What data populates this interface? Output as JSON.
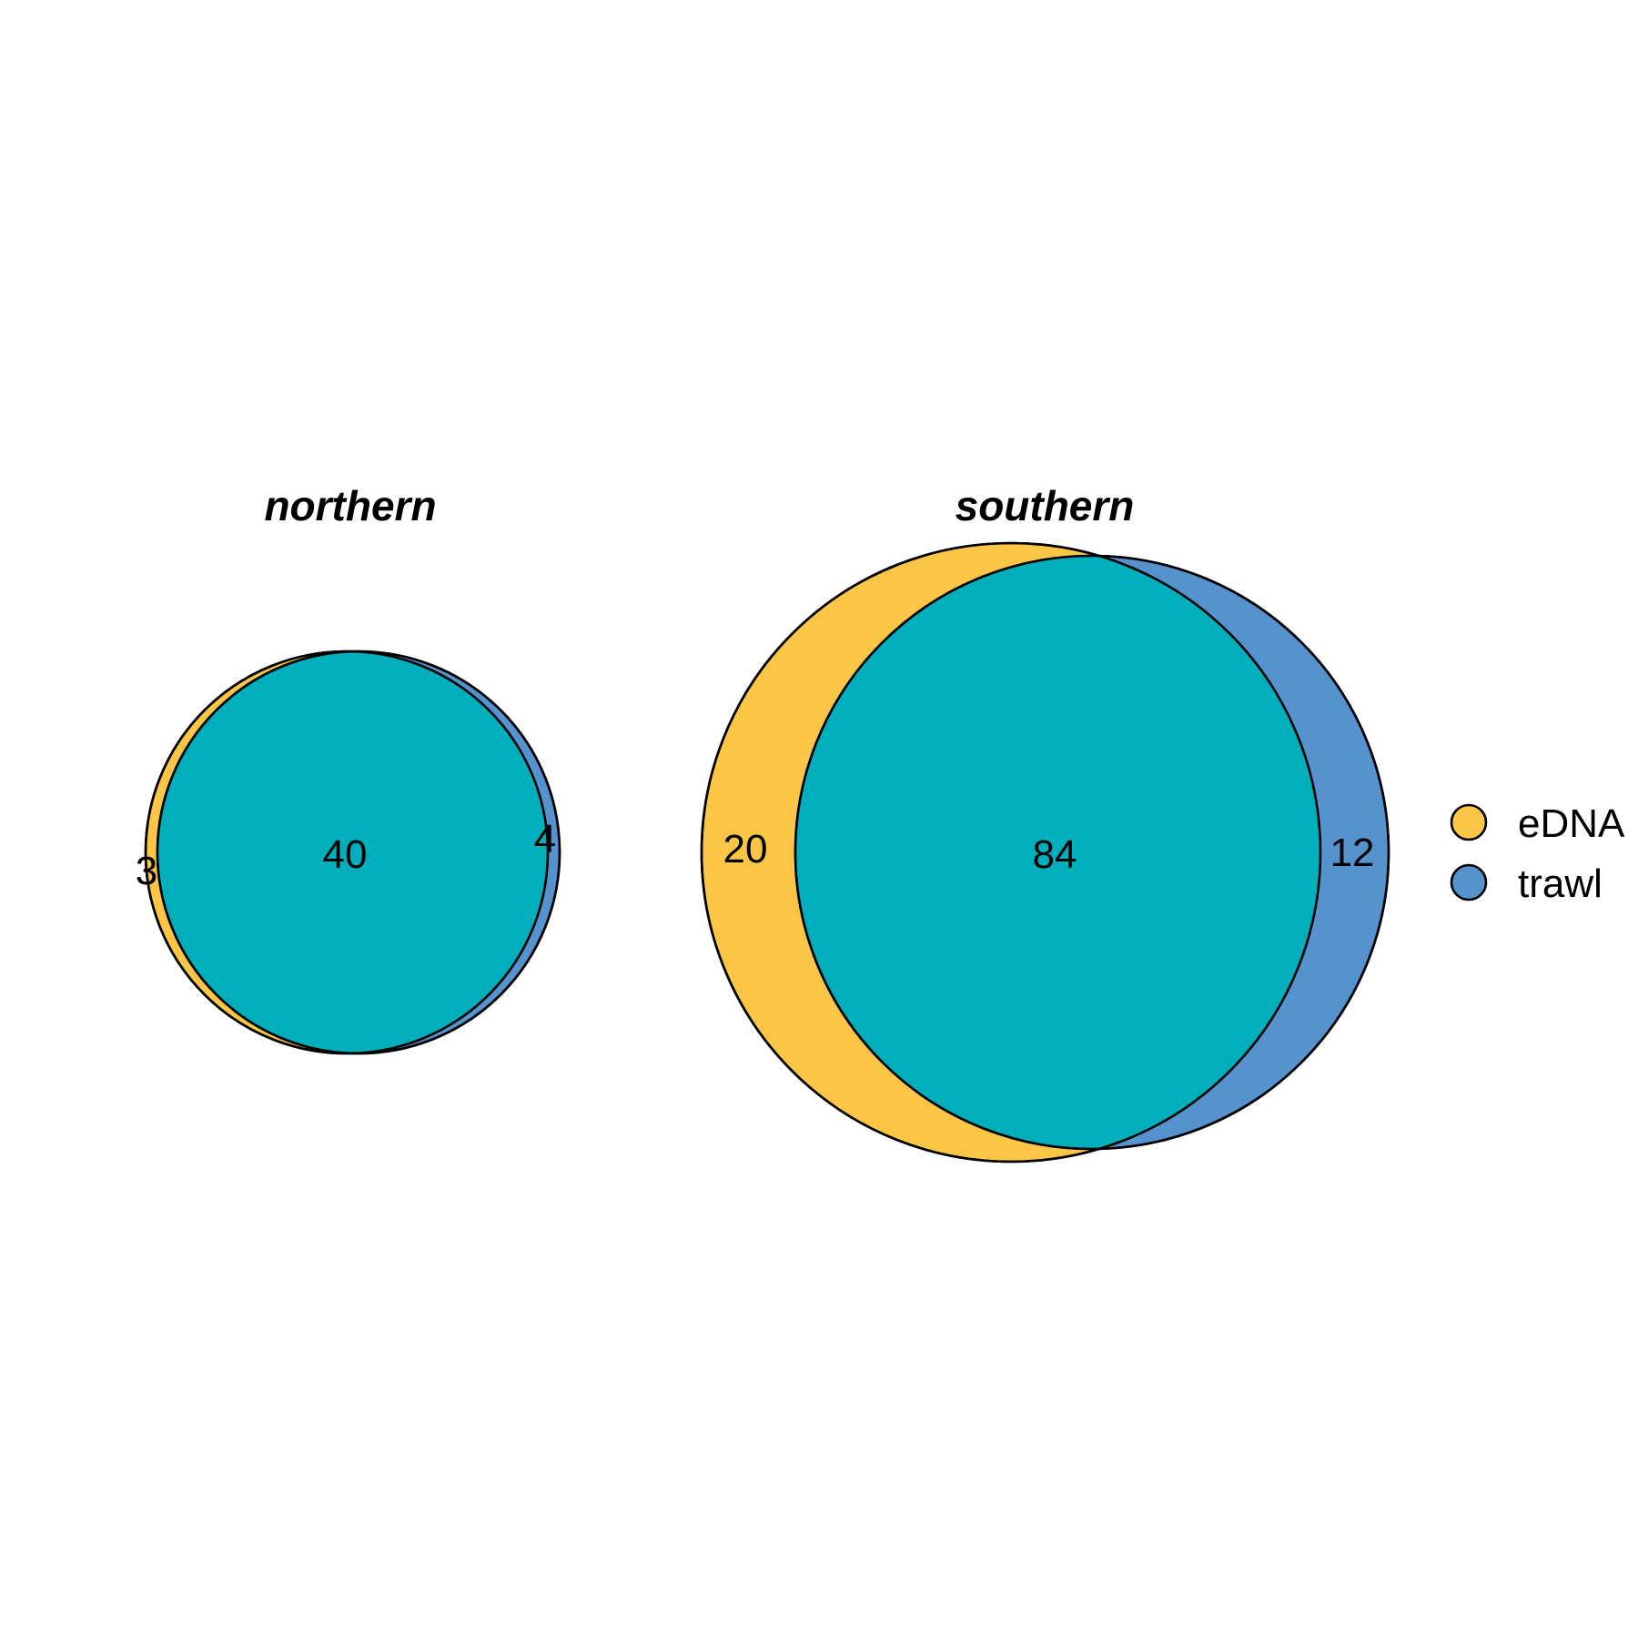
{
  "chart_data": {
    "type": "venn",
    "sets": [
      {
        "name": "eDNA",
        "color": "#FBC546"
      },
      {
        "name": "trawl",
        "color": "#5592CE"
      }
    ],
    "overlap_color": "#00AFBB",
    "panels": [
      {
        "title": "northern",
        "counts": {
          "only_first": "3",
          "both": "40",
          "only_second": "4"
        }
      },
      {
        "title": "southern",
        "counts": {
          "only_first": "20",
          "both": "84",
          "only_second": "12"
        }
      }
    ],
    "legend": {
      "position": "right",
      "items": [
        "eDNA",
        "trawl"
      ]
    }
  }
}
